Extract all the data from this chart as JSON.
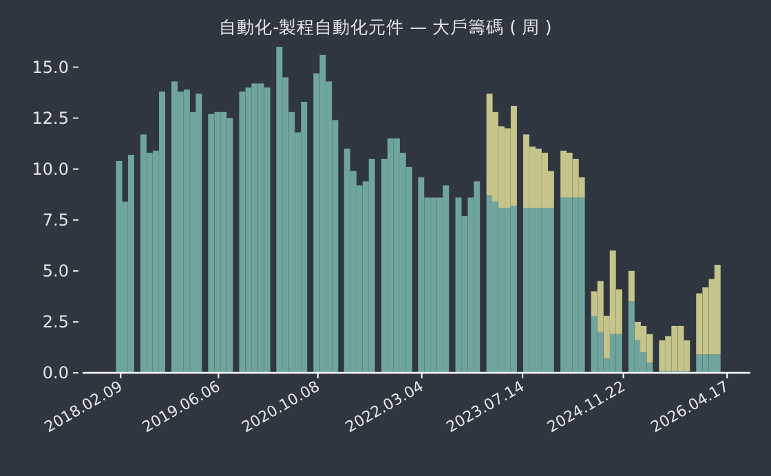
{
  "chart_data": {
    "type": "bar",
    "stacked": true,
    "title": "自動化-製程自動化元件 — 大戶籌碼 ( 周 )",
    "x": [
      "2018-02",
      "2018-03",
      "2018-04",
      "2018-05",
      "2018-06",
      "2018-07",
      "2018-08",
      "2018-09",
      "2018-10",
      "2018-11",
      "2018-12",
      "2019-01",
      "2019-02",
      "2019-03",
      "2019-04",
      "2019-05",
      "2019-06",
      "2019-07",
      "2019-08",
      "2019-09",
      "2019-10",
      "2019-11",
      "2019-12",
      "2020-01",
      "2020-02",
      "2020-03",
      "2020-04",
      "2020-05",
      "2020-06",
      "2020-07",
      "2020-08",
      "2020-09",
      "2020-10",
      "2020-11",
      "2020-12",
      "2021-01",
      "2021-02",
      "2021-03",
      "2021-04",
      "2021-05",
      "2021-06",
      "2021-07",
      "2021-08",
      "2021-09",
      "2021-10",
      "2021-11",
      "2021-12",
      "2022-01",
      "2022-02",
      "2022-03",
      "2022-04",
      "2022-05",
      "2022-06",
      "2022-07",
      "2022-08",
      "2022-09",
      "2022-10",
      "2022-11",
      "2022-12",
      "2023-01",
      "2023-02",
      "2023-03",
      "2023-04",
      "2023-05",
      "2023-06",
      "2023-07",
      "2023-08",
      "2023-09",
      "2023-10",
      "2023-11",
      "2023-12",
      "2024-01",
      "2024-02",
      "2024-03",
      "2024-04",
      "2024-05",
      "2024-06",
      "2024-07",
      "2024-08",
      "2024-09",
      "2024-10",
      "2024-11",
      "2024-12",
      "2025-01",
      "2025-02",
      "2025-03",
      "2025-04",
      "2025-05",
      "2025-06",
      "2025-07",
      "2025-08",
      "2025-09",
      "2025-10",
      "2025-11",
      "2025-12",
      "2026-01",
      "2026-02",
      "2026-03"
    ],
    "series": [
      {
        "color": "#6fa59d",
        "values": [
          10.4,
          8.4,
          10.7,
          null,
          11.7,
          10.8,
          10.9,
          13.8,
          null,
          14.3,
          13.8,
          13.9,
          12.8,
          13.7,
          null,
          12.7,
          12.8,
          12.8,
          12.5,
          null,
          13.8,
          14.0,
          14.2,
          14.2,
          14.0,
          null,
          16.0,
          14.5,
          12.8,
          11.8,
          13.3,
          null,
          14.7,
          15.6,
          14.3,
          12.4,
          null,
          11.0,
          9.9,
          9.2,
          9.4,
          10.5,
          null,
          10.5,
          11.5,
          11.5,
          10.8,
          10.1,
          null,
          9.6,
          8.6,
          8.6,
          8.6,
          9.2,
          null,
          8.6,
          7.7,
          8.6,
          9.4,
          null,
          8.7,
          8.4,
          8.1,
          8.1,
          8.2,
          null,
          8.1,
          8.1,
          8.1,
          8.1,
          8.1,
          null,
          8.6,
          8.6,
          8.6,
          8.6,
          null,
          2.8,
          2.0,
          0.7,
          1.9,
          1.9,
          null,
          3.5,
          1.6,
          1.0,
          0.5,
          null,
          0.1,
          0.1,
          0.1,
          0.1,
          0.1,
          null,
          0.9,
          0.9,
          0.9,
          0.9
        ]
      },
      {
        "color": "#c5c48a",
        "values": [
          null,
          null,
          null,
          null,
          null,
          null,
          null,
          null,
          null,
          null,
          null,
          null,
          null,
          null,
          null,
          null,
          null,
          null,
          null,
          null,
          null,
          null,
          null,
          null,
          null,
          null,
          null,
          null,
          null,
          null,
          null,
          null,
          null,
          null,
          null,
          null,
          null,
          null,
          null,
          null,
          null,
          null,
          null,
          null,
          null,
          null,
          null,
          null,
          null,
          null,
          null,
          null,
          null,
          null,
          null,
          null,
          null,
          null,
          null,
          null,
          5.0,
          4.4,
          4.0,
          3.9,
          4.9,
          null,
          3.6,
          3.0,
          2.9,
          2.7,
          1.8,
          null,
          2.3,
          2.2,
          1.9,
          1.0,
          null,
          1.2,
          2.5,
          2.1,
          4.1,
          2.2,
          null,
          1.5,
          0.9,
          1.3,
          1.4,
          null,
          1.5,
          1.7,
          2.2,
          2.2,
          1.5,
          null,
          3.0,
          3.3,
          3.7,
          4.4
        ]
      }
    ],
    "xlim": [
      "2017-08-05",
      "2026-08-10"
    ],
    "xticks": [
      {
        "value": "2018-02-09",
        "label": "2018.02.09"
      },
      {
        "value": "2019-06-06",
        "label": "2019.06.06"
      },
      {
        "value": "2020-10-08",
        "label": "2020.10.08"
      },
      {
        "value": "2022-03-04",
        "label": "2022.03.04"
      },
      {
        "value": "2023-07-14",
        "label": "2023.07.14"
      },
      {
        "value": "2024-11-22",
        "label": "2024.11.22"
      },
      {
        "value": "2026-04-17",
        "label": "2026.04.17"
      }
    ],
    "ylim": [
      0,
      16.0
    ],
    "yticks": [
      {
        "value": 0,
        "label": "0.0"
      },
      {
        "value": 2.5,
        "label": "2.5"
      },
      {
        "value": 5,
        "label": "5.0"
      },
      {
        "value": 7.5,
        "label": "7.5"
      },
      {
        "value": 10,
        "label": "10.0"
      },
      {
        "value": 12.5,
        "label": "12.5"
      },
      {
        "value": 15,
        "label": "15.0"
      }
    ]
  }
}
